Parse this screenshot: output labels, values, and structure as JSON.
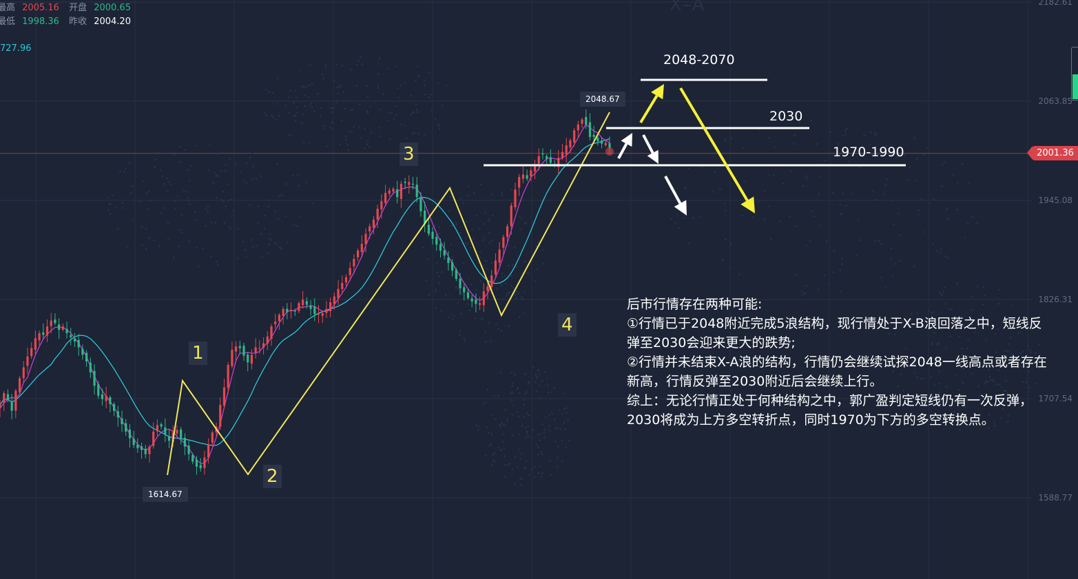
{
  "header": {
    "high_label": "最高",
    "high_value": "2005.16",
    "open_label": "开盘",
    "open_value": "2000.65",
    "low_label": "最低",
    "low_value": "1998.36",
    "prev_close_label": "昨收",
    "prev_close_value": "2004.20",
    "ma_value": "727.96"
  },
  "watermark": "X–A",
  "current_price": "2001.36",
  "chart_data": {
    "type": "candlestick",
    "y_axis_ticks": [
      {
        "value": 2182.61,
        "label": "2182.61"
      },
      {
        "value": 2063.85,
        "label": "2063.85"
      },
      {
        "value": 1945.08,
        "label": "1945.08"
      },
      {
        "value": 1826.31,
        "label": "1826.31"
      },
      {
        "value": 1707.54,
        "label": "1707.54"
      },
      {
        "value": 1588.77,
        "label": "1588.77"
      }
    ],
    "ylim": [
      1488,
      2210
    ],
    "current_price": 2001.36,
    "high_marker": {
      "value": 2048.67,
      "label": "2048.67"
    },
    "low_marker": {
      "value": 1614.67,
      "label": "1614.67"
    },
    "close_series": [
      1700,
      1714,
      1706,
      1693,
      1717,
      1732,
      1745,
      1758,
      1768,
      1780,
      1786,
      1784,
      1794,
      1801,
      1798,
      1790,
      1794,
      1786,
      1781,
      1776,
      1769,
      1760,
      1752,
      1739,
      1723,
      1711,
      1707,
      1711,
      1701,
      1693,
      1685,
      1677,
      1668,
      1660,
      1652,
      1648,
      1646,
      1641,
      1650,
      1668,
      1676,
      1674,
      1665,
      1657,
      1667,
      1670,
      1660,
      1650,
      1641,
      1632,
      1626,
      1624,
      1637,
      1652,
      1667,
      1674,
      1700,
      1721,
      1748,
      1766,
      1770,
      1768,
      1759,
      1751,
      1760,
      1769,
      1768,
      1774,
      1782,
      1794,
      1800,
      1808,
      1815,
      1811,
      1814,
      1812,
      1822,
      1826,
      1820,
      1815,
      1809,
      1809,
      1810,
      1815,
      1823,
      1830,
      1839,
      1846,
      1853,
      1864,
      1875,
      1885,
      1893,
      1905,
      1914,
      1922,
      1935,
      1944,
      1954,
      1957,
      1959,
      1949,
      1965,
      1966,
      1967,
      1964,
      1949,
      1932,
      1917,
      1905,
      1899,
      1892,
      1885,
      1879,
      1870,
      1861,
      1851,
      1840,
      1835,
      1828,
      1824,
      1821,
      1822,
      1836,
      1842,
      1855,
      1873,
      1886,
      1901,
      1914,
      1939,
      1958,
      1973,
      1976,
      1971,
      1981,
      1987,
      1998,
      2000,
      1995,
      1990,
      1988,
      1996,
      2003,
      2011,
      2017,
      2029,
      2036,
      2042,
      2036,
      2021,
      2021,
      2016,
      2013,
      2014,
      2008
    ],
    "ma_fast_series": [
      1696,
      1702,
      1707,
      1709,
      1708,
      1713,
      1727,
      1733,
      1747,
      1760,
      1770,
      1779,
      1785,
      1789,
      1793,
      1793,
      1793,
      1790,
      1786,
      1780,
      1774,
      1766,
      1758,
      1746,
      1735,
      1724,
      1717,
      1710,
      1704,
      1697,
      1689,
      1681,
      1674,
      1665,
      1659,
      1653,
      1648,
      1646,
      1648,
      1654,
      1662,
      1667,
      1670,
      1671,
      1668,
      1662,
      1658,
      1654,
      1648,
      1641,
      1634,
      1630,
      1630,
      1636,
      1648,
      1661,
      1677,
      1697,
      1716,
      1735,
      1753,
      1762,
      1762,
      1763,
      1762,
      1762,
      1764,
      1770,
      1774,
      1781,
      1789,
      1798,
      1805,
      1812,
      1813,
      1813,
      1817,
      1817,
      1818,
      1819,
      1818,
      1815,
      1812,
      1812,
      1814,
      1820,
      1827,
      1834,
      1841,
      1850,
      1859,
      1868,
      1878,
      1891,
      1902,
      1910,
      1919,
      1929,
      1939,
      1947,
      1954,
      1956,
      1958,
      1960,
      1961,
      1961,
      1959,
      1952,
      1941,
      1929,
      1917,
      1906,
      1896,
      1887,
      1878,
      1870,
      1862,
      1854,
      1846,
      1839,
      1833,
      1828,
      1825,
      1828,
      1834,
      1843,
      1852,
      1864,
      1879,
      1894,
      1909,
      1925,
      1940,
      1953,
      1963,
      1973,
      1977,
      1983,
      1990,
      1995,
      1996,
      1995,
      1994,
      1996,
      1999,
      2004,
      2012,
      2020,
      2029,
      2036,
      2032,
      2028,
      2026,
      2020,
      2017,
      2014
    ]
  },
  "waves": [
    {
      "label": "1"
    },
    {
      "label": "2"
    },
    {
      "label": "3"
    },
    {
      "label": "4"
    }
  ],
  "levels": [
    {
      "label": "2048-2070"
    },
    {
      "label": "2030"
    },
    {
      "label": "1970-1990"
    }
  ],
  "annotation": {
    "lines": [
      "后市行情存在两种可能:",
      "①行情已于2048附近完成5浪结构，现行情处于X-B浪回落之中，短线反",
      "弹至2030会迎来更大的跌势;",
      "②行情并未结束X-A浪的结构，行情仍会继续试探2048一线高点或者存在",
      "新高，行情反弹至2030附近后会继续上行。",
      "综上：无论行情正处于何种结构之中，郭广盈判定短线仍有一次反弹，",
      "2030将成为上方多空转折点，同时1970为下方的多空转换点。"
    ]
  },
  "colors": {
    "background": "#1c2435",
    "up_candle": "#e8474f",
    "down_candle": "#2fb88a",
    "ma_fast": "#c43fd0",
    "ma_slow": "#2ec7d8",
    "wave_line": "#f3e65a",
    "level_line": "#ffffff",
    "arrow_yellow": "#f5f03a",
    "arrow_white": "#ffffff"
  }
}
